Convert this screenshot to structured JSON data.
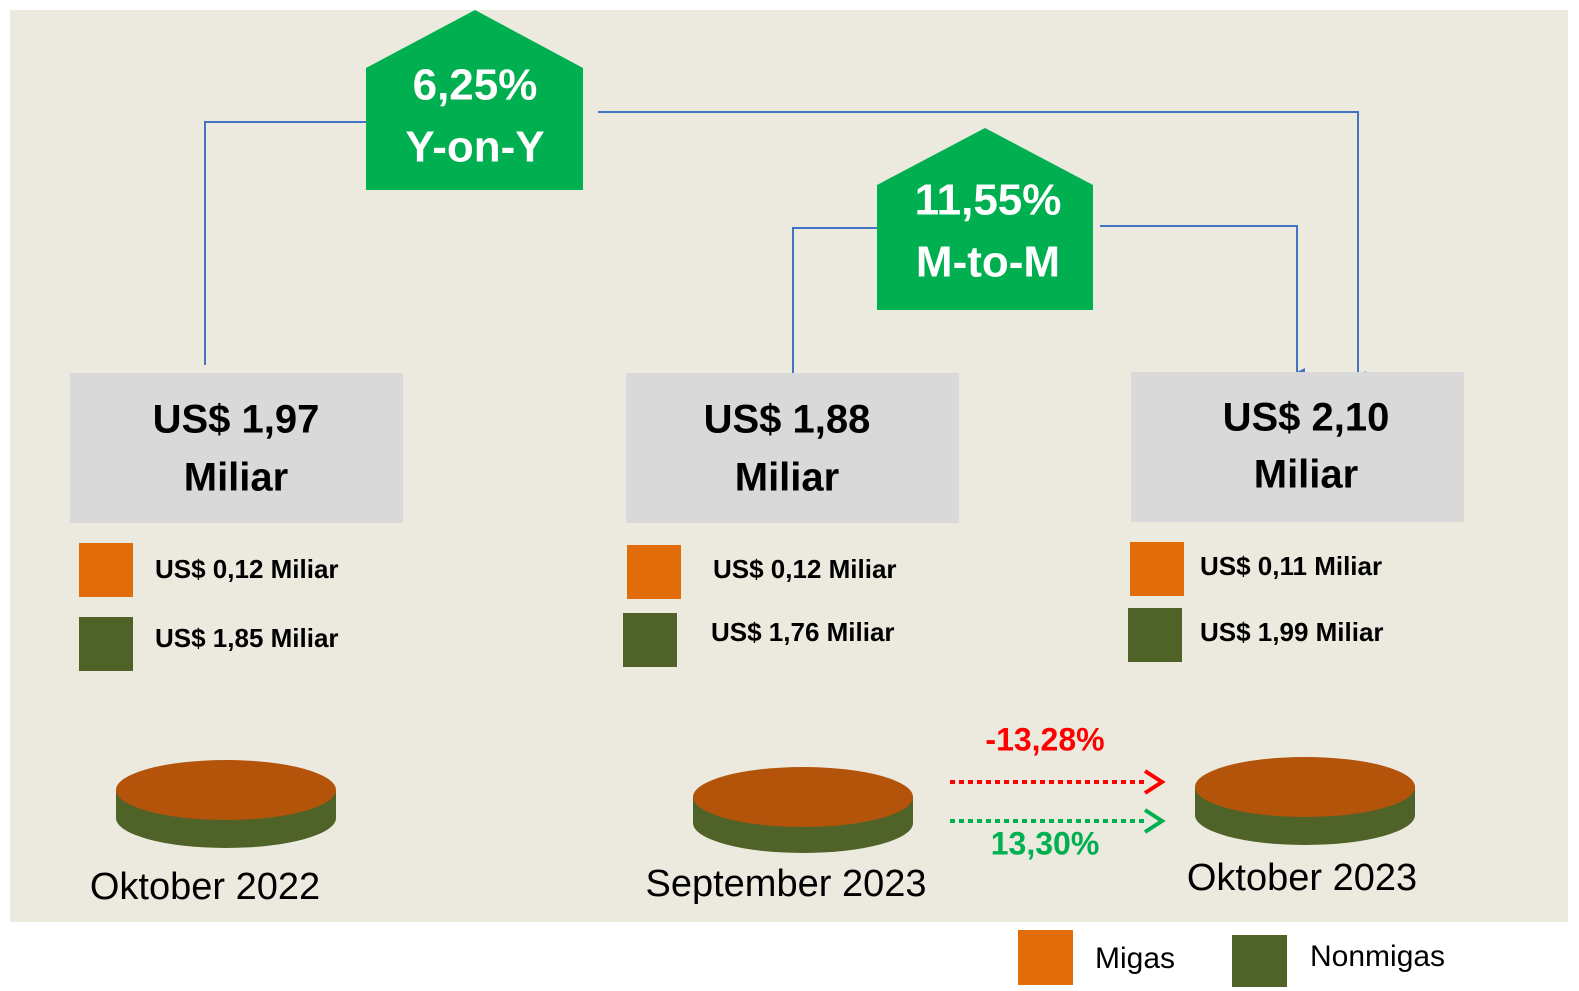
{
  "badges": [
    {
      "value": "6,25%",
      "label": "Y-on-Y"
    },
    {
      "value": "11,55%",
      "label": "M-to-M"
    }
  ],
  "periods": [
    {
      "total": "US$ 1,97",
      "unit": "Miliar",
      "migas": "US$ 0,12 Miliar",
      "nonmigas": "US$ 1,85 Miliar",
      "label": "Oktober 2022"
    },
    {
      "total": "US$ 1,88",
      "unit": "Miliar",
      "migas": "US$ 0,12 Miliar",
      "nonmigas": "US$ 1,76 Miliar",
      "label": "September 2023"
    },
    {
      "total": "US$ 2,10",
      "unit": "Miliar",
      "migas": "US$ 0,11 Miliar",
      "nonmigas": "US$ 1,99 Miliar",
      "label": "Oktober 2023"
    }
  ],
  "changes": {
    "migas": "-13,28%",
    "nonmigas": "13,30%"
  },
  "legend": [
    "Migas",
    "Nonmigas"
  ]
}
